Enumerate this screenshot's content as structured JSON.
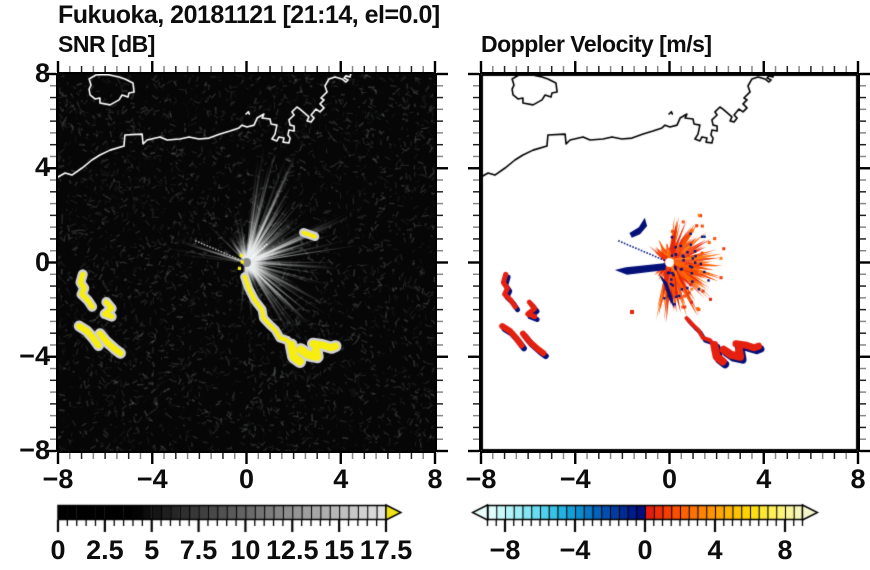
{
  "figure_title": "Fukuoka, 20181121 [21:14, el=0.0]",
  "panels": {
    "snr": {
      "label": "SNR [dB]"
    },
    "velocity": {
      "label": "Doppler Velocity [m/s]"
    }
  },
  "axes": {
    "xlim": [
      -8,
      8
    ],
    "ylim": [
      -8,
      8
    ],
    "major_tick_values": [
      -8,
      -4,
      0,
      4,
      8
    ],
    "x_major_tick_labels": [
      "−8",
      "−4",
      "0",
      "4",
      "8"
    ],
    "y_major_tick_values": [
      8,
      4,
      0,
      -4,
      -8
    ],
    "y_major_tick_labels": [
      "8",
      "4",
      "0",
      "−4",
      "−8"
    ],
    "minor_step": 0.5
  },
  "chart_data": [
    {
      "type": "heatmap",
      "title": "SNR [dB]",
      "xlabel": "",
      "ylabel": "",
      "xlim": [
        -8,
        8
      ],
      "ylim": [
        -8,
        8
      ],
      "xticks": [
        -8,
        -4,
        0,
        4,
        8
      ],
      "yticks": [
        -8,
        -4,
        0,
        4,
        8
      ],
      "grid": false,
      "description": "Radar PPI scan of signal-to-noise ratio around radar at origin; gray radial beams fan mostly north-east to south-east, dark noise background, white coastline of Fukuoka bay, saturated (>17.5 dB) echoes shown yellow south-west of radar and trailing south-east",
      "colorbar": {
        "units": "dB",
        "min": 0,
        "max": 17.5,
        "cell_size": 0.5,
        "tick_values": [
          0,
          2.5,
          5,
          7.5,
          10,
          12.5,
          15,
          17.5
        ],
        "tick_labels": [
          "0",
          "2.5",
          "5",
          "7.5",
          "10",
          "12.5",
          "15",
          "17.5"
        ],
        "overflow_arrow": true,
        "underflow_arrow": false
      }
    },
    {
      "type": "heatmap",
      "title": "Doppler Velocity [m/s]",
      "xlabel": "",
      "ylabel": "",
      "xlim": [
        -8,
        8
      ],
      "ylim": [
        -8,
        8
      ],
      "xticks": [
        -8,
        -4,
        0,
        4,
        8
      ],
      "yticks": [
        -8,
        -4,
        0,
        4,
        8
      ],
      "grid": false,
      "description": "Doppler velocity field: starburst of positive (red-orange, ~2-6 m/s) velocities around radar at origin with navy negative wedge pointing west, isolated red/navy echo cells to the south-west and south-east, black coastline on white background",
      "colorbar": {
        "units": "m/s",
        "min": -9,
        "max": 9,
        "cell_size": 0.5,
        "tick_values": [
          -8,
          -4,
          0,
          4,
          8
        ],
        "tick_labels": [
          "−8",
          "−4",
          "0",
          "4",
          "8"
        ],
        "overflow_arrow": true,
        "underflow_arrow": true
      }
    }
  ],
  "colorbars": {
    "snr": {
      "colors": [
        "#000000",
        "#000000",
        "#000000",
        "#000000",
        "#000000",
        "#000000",
        "#000000",
        "#000000",
        "#040404",
        "#0d0d0d",
        "#151515",
        "#1e1e1e",
        "#262626",
        "#2f2f2f",
        "#373737",
        "#404040",
        "#484848",
        "#515151",
        "#595959",
        "#626262",
        "#6a6a6a",
        "#737373",
        "#7c7c7c",
        "#848484",
        "#8d8d8d",
        "#959595",
        "#9e9e9e",
        "#a6a6a6",
        "#afafaf",
        "#b7b7b7",
        "#c0c0c0",
        "#c8c8c8",
        "#d1d1d1",
        "#d9d9d9",
        "#e2e2e2"
      ],
      "overflow_color": "#f0e313",
      "tick_values": [
        0,
        2.5,
        5,
        7.5,
        10,
        12.5,
        15,
        17.5
      ],
      "tick_labels": [
        "0",
        "2.5",
        "5",
        "7.5",
        "10",
        "12.5",
        "15",
        "17.5"
      ]
    },
    "velocity": {
      "colors": [
        "#dffdfd",
        "#c9f8fb",
        "#b3f3f9",
        "#9cedf7",
        "#84e6f4",
        "#69dcf0",
        "#4fd0ec",
        "#38c2e7",
        "#24b2e1",
        "#149fd9",
        "#0b8cd0",
        "#0677c5",
        "#0362ba",
        "#024eae",
        "#013ba2",
        "#012a96",
        "#001b8a",
        "#000e7e",
        "#e81c0e",
        "#ef2d07",
        "#f63e02",
        "#fb4f00",
        "#ff6000",
        "#ff7100",
        "#ff8200",
        "#ff9300",
        "#ffa400",
        "#ffb400",
        "#ffc300",
        "#ffd200",
        "#ffdf14",
        "#ffe933",
        "#fff055",
        "#fdf378",
        "#faf59a",
        "#f7f6ba"
      ],
      "underflow_color": "#eafefe",
      "overflow_color": "#f5f5cd",
      "tick_values": [
        -8,
        -4,
        0,
        4,
        8
      ],
      "tick_labels": [
        "−8",
        "−4",
        "0",
        "4",
        "8"
      ]
    }
  },
  "geometry": {
    "radar_center": [
      0,
      0
    ],
    "coast": [
      [
        -8,
        3.63
      ],
      [
        -7.7,
        3.8
      ],
      [
        -7.41,
        3.71
      ],
      [
        -6.98,
        4.01
      ],
      [
        -6.56,
        4.35
      ],
      [
        -6.22,
        4.56
      ],
      [
        -5.79,
        4.77
      ],
      [
        -5.2,
        4.94
      ],
      [
        -5.16,
        5.41
      ],
      [
        -4.43,
        5.45
      ],
      [
        -4.39,
        5.03
      ],
      [
        -4.22,
        5.2
      ],
      [
        -3.67,
        5.33
      ],
      [
        -3.37,
        5.2
      ],
      [
        -2.82,
        5.24
      ],
      [
        -2.44,
        5.33
      ],
      [
        -2.02,
        5.24
      ],
      [
        -1.59,
        5.28
      ],
      [
        -1.12,
        5.45
      ],
      [
        -0.7,
        5.58
      ],
      [
        -0.32,
        5.71
      ],
      [
        -0.19,
        5.83
      ],
      [
        0.02,
        5.75
      ],
      [
        0.32,
        5.83
      ],
      [
        0.45,
        6.13
      ],
      [
        0.74,
        6.3
      ],
      [
        0.66,
        6.13
      ],
      [
        1.0,
        6.09
      ],
      [
        1.04,
        5.88
      ],
      [
        1.29,
        5.83
      ],
      [
        1.21,
        5.45
      ],
      [
        1.08,
        5.24
      ],
      [
        1.29,
        5.16
      ],
      [
        1.38,
        5.33
      ],
      [
        1.59,
        5.28
      ],
      [
        1.55,
        5.11
      ],
      [
        1.8,
        5.07
      ],
      [
        1.85,
        5.28
      ],
      [
        1.76,
        5.41
      ],
      [
        1.8,
        5.62
      ],
      [
        2.02,
        5.58
      ],
      [
        2.02,
        5.79
      ],
      [
        1.85,
        5.83
      ],
      [
        1.8,
        6.05
      ],
      [
        2.02,
        6.26
      ],
      [
        1.93,
        6.39
      ],
      [
        2.14,
        6.6
      ],
      [
        2.27,
        6.51
      ],
      [
        2.65,
        6.18
      ],
      [
        2.57,
        6.01
      ],
      [
        2.74,
        5.96
      ],
      [
        2.87,
        6.13
      ],
      [
        2.74,
        6.26
      ],
      [
        2.95,
        6.51
      ],
      [
        3.12,
        6.39
      ],
      [
        3.29,
        6.56
      ],
      [
        3.12,
        6.73
      ],
      [
        3.29,
        6.9
      ],
      [
        3.16,
        6.98
      ],
      [
        3.42,
        7.24
      ],
      [
        3.33,
        7.49
      ],
      [
        3.5,
        7.79
      ],
      [
        3.76,
        7.87
      ],
      [
        4.05,
        7.79
      ],
      [
        4.22,
        7.66
      ],
      [
        4.31,
        7.75
      ],
      [
        4.14,
        7.83
      ],
      [
        4.22,
        7.92
      ],
      [
        4.39,
        7.87
      ],
      [
        4.44,
        8.05
      ]
    ],
    "island": [
      [
        -6.68,
        7.79
      ],
      [
        -6.39,
        7.96
      ],
      [
        -5.92,
        7.98
      ],
      [
        -5.41,
        7.87
      ],
      [
        -5.16,
        7.79
      ],
      [
        -4.82,
        7.62
      ],
      [
        -4.77,
        7.24
      ],
      [
        -4.99,
        7.19
      ],
      [
        -5.03,
        7.02
      ],
      [
        -5.28,
        7.11
      ],
      [
        -5.41,
        6.9
      ],
      [
        -5.79,
        6.69
      ],
      [
        -6.22,
        6.77
      ],
      [
        -6.22,
        6.98
      ],
      [
        -6.43,
        6.94
      ],
      [
        -6.64,
        7.11
      ],
      [
        -6.68,
        7.36
      ],
      [
        -6.6,
        7.53
      ]
    ],
    "islet": [
      [
        -0.02,
        6.3
      ],
      [
        0.08,
        6.4
      ],
      [
        0.12,
        6.3
      ]
    ],
    "worms": [
      {
        "pts": [
          [
            -6.95,
            -0.5
          ],
          [
            -7.05,
            -0.85
          ],
          [
            -6.88,
            -1.1
          ],
          [
            -7.0,
            -1.35
          ],
          [
            -6.72,
            -1.62
          ],
          [
            -6.55,
            -1.88
          ]
        ],
        "w": 5
      },
      {
        "pts": [
          [
            -5.95,
            -1.68
          ],
          [
            -5.72,
            -1.95
          ],
          [
            -6.02,
            -2.18
          ],
          [
            -5.72,
            -2.3
          ]
        ],
        "w": 5
      },
      {
        "pts": [
          [
            -7.1,
            -2.7
          ],
          [
            -6.78,
            -2.9
          ],
          [
            -6.5,
            -3.22
          ],
          [
            -6.28,
            -3.52
          ]
        ],
        "w": 6
      },
      {
        "pts": [
          [
            -6.22,
            -3.02
          ],
          [
            -5.95,
            -3.35
          ],
          [
            -5.58,
            -3.68
          ],
          [
            -5.35,
            -3.85
          ]
        ],
        "w": 6
      }
    ],
    "chain": {
      "pts": [
        [
          -0.08,
          -0.6
        ],
        [
          0.1,
          -1.1
        ],
        [
          0.35,
          -1.6
        ],
        [
          0.66,
          -2.0
        ],
        [
          0.72,
          -2.36
        ],
        [
          1.0,
          -2.66
        ],
        [
          1.22,
          -2.86
        ],
        [
          1.42,
          -3.2
        ],
        [
          1.72,
          -3.3
        ],
        [
          1.97,
          -3.62
        ]
      ],
      "w": 4
    },
    "big_blobs": [
      {
        "pts": [
          [
            1.9,
            -3.5
          ],
          [
            2.0,
            -4.0
          ],
          [
            2.26,
            -4.2
          ]
        ],
        "w": 8
      },
      {
        "pts": [
          [
            2.3,
            -3.7
          ],
          [
            2.62,
            -3.92
          ],
          [
            3.0,
            -4.0
          ],
          [
            2.95,
            -3.72
          ]
        ],
        "w": 8
      },
      {
        "pts": [
          [
            2.82,
            -3.45
          ],
          [
            3.2,
            -3.5
          ],
          [
            3.6,
            -3.62
          ],
          [
            3.78,
            -3.55
          ]
        ],
        "w": 7
      }
    ],
    "dash_ne": {
      "pts": [
        [
          2.42,
          1.27
        ],
        [
          2.9,
          1.1
        ]
      ],
      "w": 4
    },
    "center_specks": [
      [
        -0.22,
        0.3
      ],
      [
        -0.18,
        0.02
      ],
      [
        -0.3,
        -0.25
      ]
    ],
    "dotted_ray_sw": {
      "angle_deg": 203,
      "r0": 0.25,
      "r1": 2.35,
      "step": 0.13
    },
    "dotted_ray_ne": {
      "angle_deg": -42,
      "r0": 0.3,
      "r1": 1.2,
      "step": 0.12
    }
  },
  "render": {
    "snr": {
      "seed": 7,
      "noise_n": 3800,
      "yellow": "#f7ed0e",
      "halo": "#d2d2d2",
      "coast_color": "#ffffff",
      "sectors": [
        {
          "a0": -85,
          "a1": -5,
          "n": 70,
          "lmin": 1.2,
          "lmax": 5.2,
          "amin": 0.25,
          "amax": 0.8
        },
        {
          "a0": -5,
          "a1": 62,
          "n": 46,
          "lmin": 0.8,
          "lmax": 4.2,
          "amin": 0.2,
          "amax": 0.6
        },
        {
          "a0": 62,
          "a1": 102,
          "n": 14,
          "lmin": 0.6,
          "lmax": 2.8,
          "amin": 0.15,
          "amax": 0.5
        },
        {
          "a0": -130,
          "a1": -85,
          "n": 12,
          "lmin": 0.8,
          "lmax": 3.0,
          "amin": 0.15,
          "amax": 0.5
        },
        {
          "a0": -175,
          "a1": -132,
          "n": 7,
          "lmin": 1.5,
          "lmax": 3.6,
          "amin": 0.2,
          "amax": 0.55
        }
      ],
      "glow": {
        "a0": -135,
        "a1": 100,
        "n": 260,
        "lmin": 0.2,
        "lmax": 1.4
      }
    },
    "velocity": {
      "seed": 11,
      "coast_color": "#000000",
      "palette": [
        "#e32410",
        "#ee3a06",
        "#f84e00",
        "#ff6400",
        "#ff7b14",
        "#f2512a"
      ],
      "navy": "#041078",
      "red": "#e6200f",
      "sectors": [
        {
          "a0": -85,
          "a1": -10,
          "n": 95,
          "lmin": 0.5,
          "lmax": 2.1
        },
        {
          "a0": -10,
          "a1": 55,
          "n": 75,
          "lmin": 0.5,
          "lmax": 2.4
        },
        {
          "a0": 55,
          "a1": 105,
          "n": 48,
          "lmin": 0.4,
          "lmax": 2.6
        },
        {
          "a0": 105,
          "a1": 150,
          "n": 12,
          "lmin": 0.2,
          "lmax": 0.9
        },
        {
          "a0": -150,
          "a1": -85,
          "n": 26,
          "lmin": 0.3,
          "lmax": 1.2
        }
      ],
      "navy_polys": [
        [
          [
            -0.12,
            -0.02
          ],
          [
            -1.85,
            -0.2
          ],
          [
            -2.32,
            -0.32
          ],
          [
            -1.8,
            -0.52
          ],
          [
            -0.18,
            -0.32
          ]
        ],
        [
          [
            -1.7,
            1.25
          ],
          [
            -1.3,
            1.5
          ],
          [
            -1.05,
            1.9
          ],
          [
            -0.95,
            1.55
          ],
          [
            -1.25,
            1.2
          ],
          [
            -1.6,
            1.05
          ]
        ],
        [
          [
            -0.45,
            -0.5
          ],
          [
            -0.1,
            -0.85
          ],
          [
            0.12,
            -1.45
          ],
          [
            0.22,
            -1.95
          ],
          [
            0.0,
            -1.6
          ],
          [
            -0.2,
            -1.0
          ]
        ]
      ],
      "navy_dots": {
        "n": 45,
        "a0": -85,
        "a1": 100,
        "r0": 0.3,
        "r1": 1.9
      },
      "orange_dots": {
        "n": 28,
        "a0": -85,
        "a1": 80,
        "r0": 1.3,
        "r1": 2.4
      },
      "lone_red_dot": [
        -1.59,
        -2.1
      ]
    }
  }
}
